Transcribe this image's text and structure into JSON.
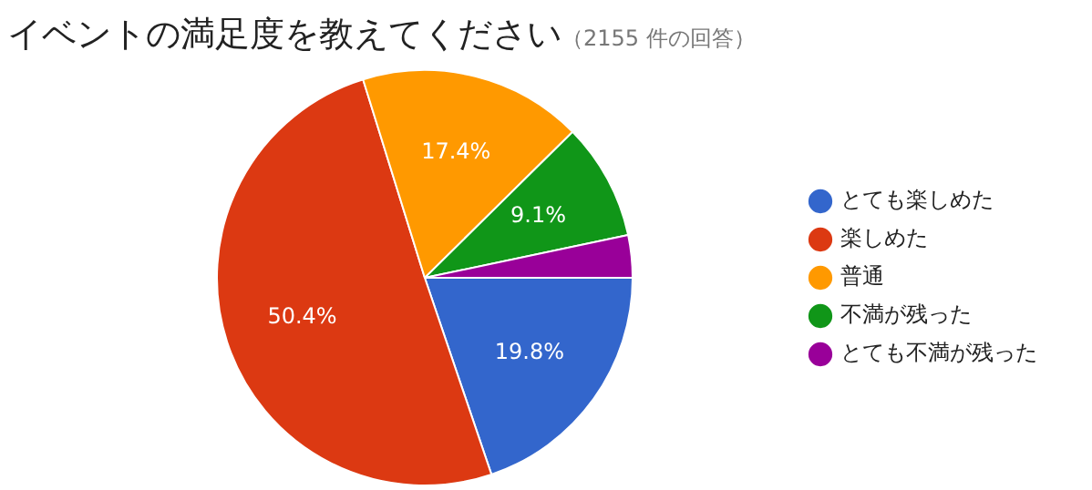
{
  "chart_data": {
    "type": "pie",
    "title": "イベントの満足度を教えてください",
    "subtitle": "（2155 件の回答）",
    "categories": [
      "とても楽しめた",
      "楽しめた",
      "普通",
      "不満が残った",
      "とても不満が残った"
    ],
    "values": [
      19.8,
      50.4,
      17.4,
      9.1,
      3.3
    ],
    "colors": [
      "#3366cc",
      "#dc3912",
      "#ff9900",
      "#109618",
      "#990099"
    ],
    "value_labels": [
      "19.8%",
      "50.4%",
      "17.4%",
      "9.1%",
      null
    ],
    "legend": "right"
  }
}
